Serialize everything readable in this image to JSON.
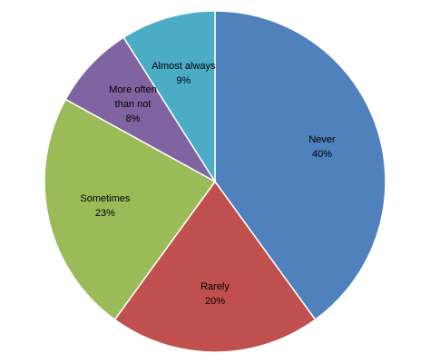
{
  "chart_data": {
    "type": "pie",
    "categories": [
      "Never",
      "Rarely",
      "Sometimes",
      "More often than not",
      "Almost always"
    ],
    "values": [
      40,
      20,
      23,
      8,
      9
    ],
    "value_labels": [
      "40%",
      "20%",
      "23%",
      "8%",
      "9%"
    ],
    "colors": [
      "#4f81bd",
      "#c0504d",
      "#9bbb59",
      "#8064a2",
      "#4bacc6"
    ]
  }
}
